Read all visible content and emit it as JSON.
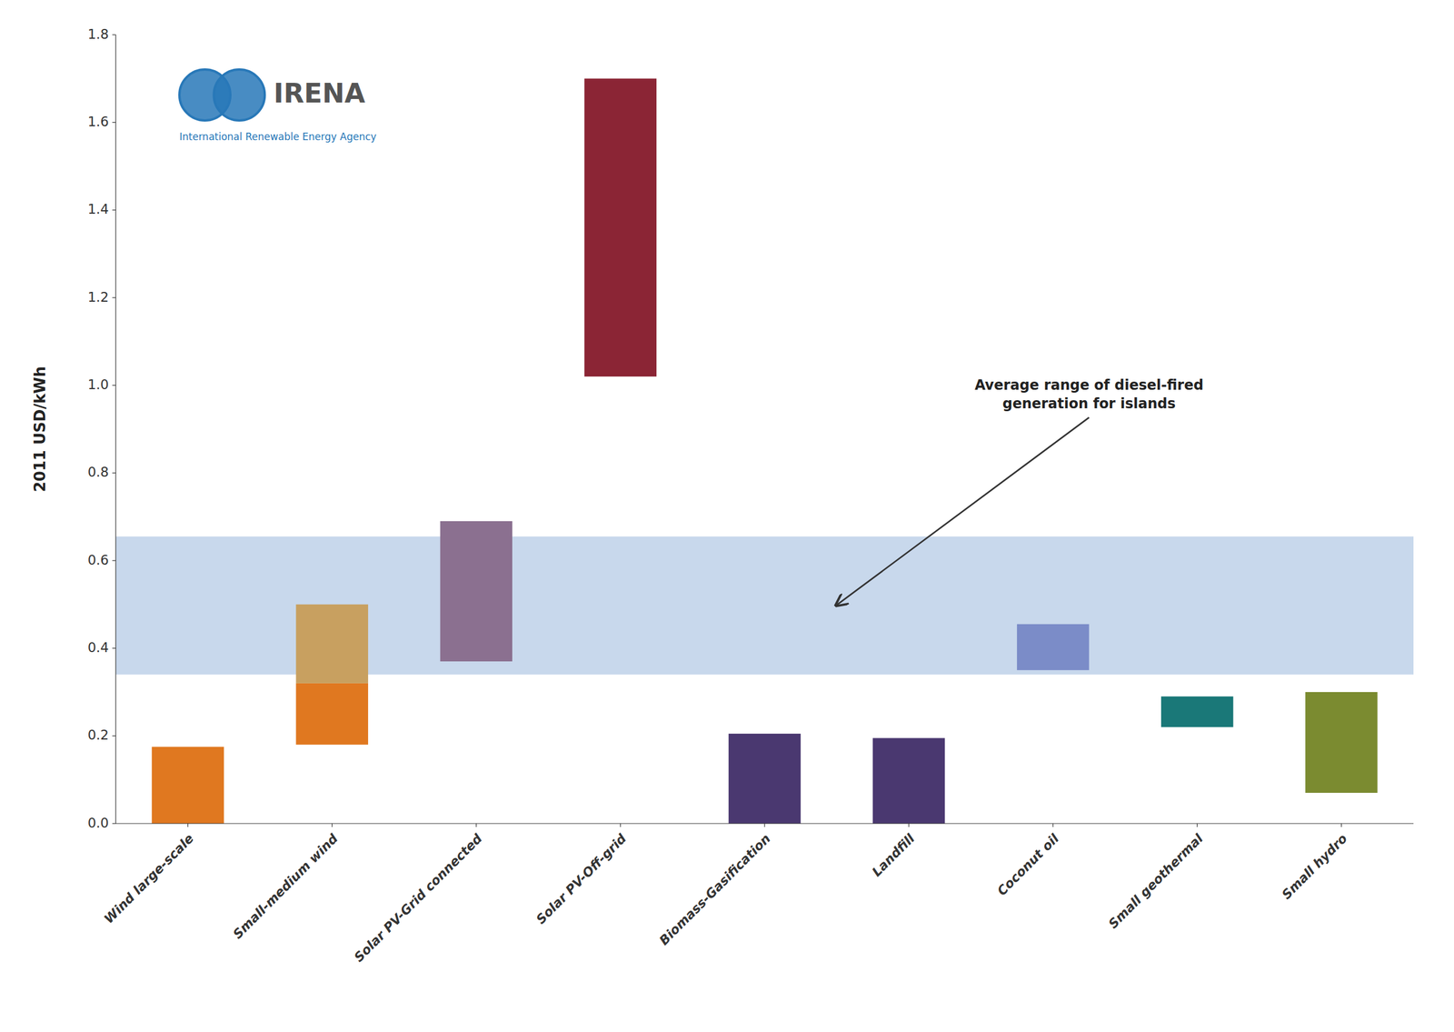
{
  "chart_data": {
    "type": "bar",
    "categories": [
      "Wind large-scale",
      "Small-medium wind",
      "Solar PV-Grid connected",
      "Solar PV-Off-grid",
      "Biomass-Gasification",
      "Landfill",
      "Coconut oil",
      "Small geothermal",
      "Small hydro"
    ],
    "series": [
      {
        "low": [
          0.0,
          0.18,
          0.37,
          1.02,
          0.0,
          0.0,
          0.35,
          0.22,
          0.07
        ],
        "values": [
          0.175,
          0.32,
          0.69,
          1.7,
          0.205,
          0.195,
          0.455,
          0.29,
          0.3
        ],
        "colors": [
          "#E07820",
          "#E07820",
          "#8B7090",
          "#8B2535",
          "#4A3870",
          "#4A3870",
          "#7B8CC8",
          "#1A7878",
          "#7B8B30"
        ]
      },
      {
        "low": [
          null,
          0.32,
          null,
          null,
          null,
          null,
          null,
          null,
          null
        ],
        "values": [
          null,
          0.5,
          null,
          null,
          null,
          null,
          null,
          null,
          null
        ],
        "color": "#C8A060"
      }
    ],
    "reference_band": {
      "low": 0.34,
      "high": 0.655,
      "color": "#C8D8EC"
    },
    "ylabel": "2011 USD/kWh",
    "ylim": [
      0,
      1.8
    ],
    "yticks": [
      {
        "value": 0,
        "label": "0.0"
      },
      0.2,
      0.4,
      0.6,
      0.8,
      {
        "value": 1.0,
        "label": "1.0"
      },
      1.2,
      1.4,
      1.6,
      1.8
    ],
    "grid": false,
    "annotations": [
      "Average range of diesel-fired\ngeneration for islands"
    ],
    "logo": {
      "text": "IRENA",
      "subtitle": "International Renewable Energy Agency",
      "color": "#2878B8"
    }
  }
}
